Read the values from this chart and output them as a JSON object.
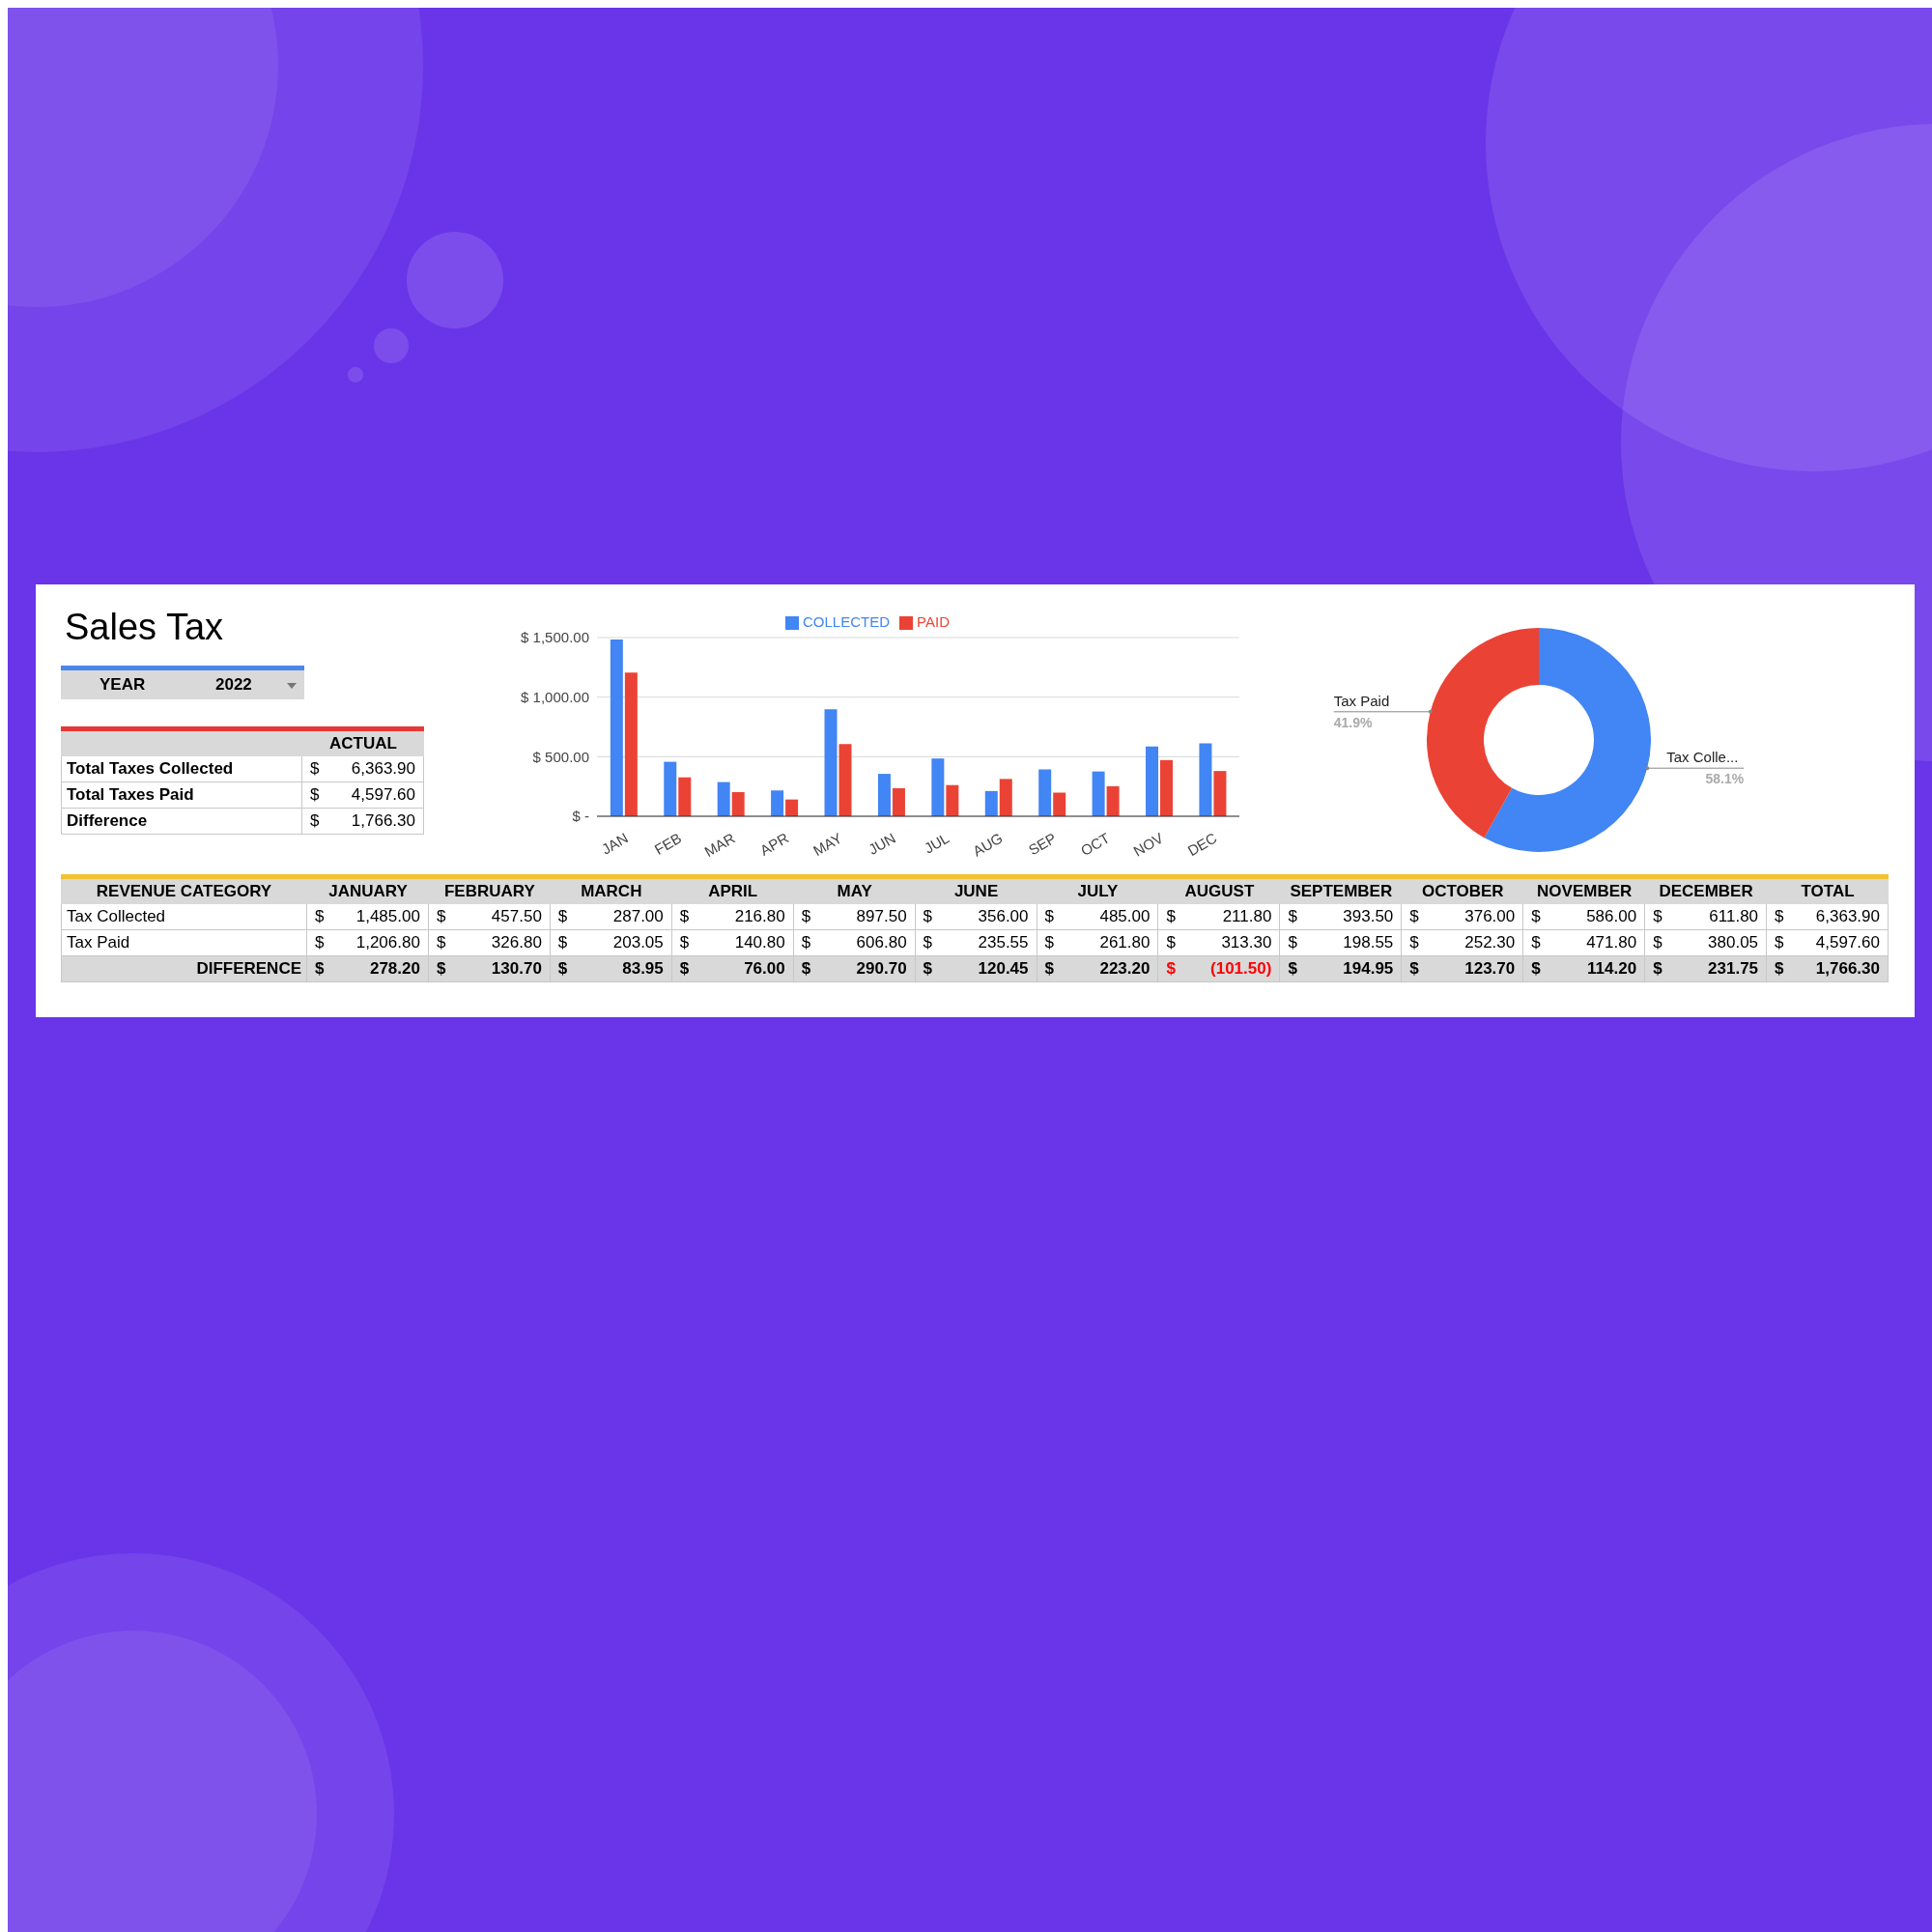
{
  "chart_data": [
    {
      "type": "other",
      "title": "Sales Tax",
      "annotations": [
        "YEAR",
        "2022",
        "$"
      ],
      "categories": [
        "ACTUAL"
      ],
      "series": [
        {
          "name": "Total Taxes Collected",
          "values": [
            6363.9
          ],
          "value_labels": [
            "6,363.90"
          ]
        },
        {
          "name": "Total Taxes Paid",
          "values": [
            4597.6
          ],
          "value_labels": [
            "4,597.60"
          ]
        },
        {
          "name": "Difference",
          "values": [
            1766.3
          ],
          "value_labels": [
            "1,766.30"
          ]
        }
      ]
    },
    {
      "type": "bar",
      "categories": [
        "JAN",
        "FEB",
        "MAR",
        "APR",
        "MAY",
        "JUN",
        "JUL",
        "AUG",
        "SEP",
        "OCT",
        "NOV",
        "DEC"
      ],
      "series": [
        {
          "name": "COLLECTED",
          "color": "#4285f4",
          "values": [
            1485,
            457.5,
            287,
            216.8,
            897.5,
            356,
            485,
            211.8,
            393.5,
            376,
            586,
            611.8
          ]
        },
        {
          "name": "PAID",
          "color": "#ea4335",
          "values": [
            1206.8,
            326.8,
            203.05,
            140.8,
            606.8,
            235.55,
            261.8,
            313.3,
            198.55,
            252.3,
            471.8,
            380.05
          ]
        }
      ],
      "ylim": [
        0,
        1500
      ],
      "yticks": [
        {
          "value": 0,
          "label": "$ -"
        },
        {
          "value": 500,
          "label": "$ 500.00"
        },
        {
          "value": 1000,
          "label": "$ 1,000.00"
        },
        {
          "value": 1500,
          "label": "$ 1,500.00"
        }
      ],
      "grid": "y",
      "legend": "top"
    },
    {
      "type": "donut",
      "categories": [
        "Tax Colle...",
        "Tax Paid"
      ],
      "values": [
        58.1,
        41.9
      ],
      "colors": [
        "#4285f4",
        "#ea4335"
      ],
      "value_labels": [
        "58.1%",
        "41.9%"
      ]
    },
    {
      "type": "other",
      "ylabel": "REVENUE CATEGORY",
      "annotations": [
        "$"
      ],
      "categories": [
        "JANUARY",
        "FEBRUARY",
        "MARCH",
        "APRIL",
        "MAY",
        "JUNE",
        "JULY",
        "AUGUST",
        "SEPTEMBER",
        "OCTOBER",
        "NOVEMBER",
        "DECEMBER",
        "TOTAL"
      ],
      "series": [
        {
          "name": "Tax Collected",
          "values": [
            1485,
            457.5,
            287,
            216.8,
            897.5,
            356,
            485,
            211.8,
            393.5,
            376,
            586,
            611.8,
            6363.9
          ],
          "value_labels": [
            "1,485.00",
            "457.50",
            "287.00",
            "216.80",
            "897.50",
            "356.00",
            "485.00",
            "211.80",
            "393.50",
            "376.00",
            "586.00",
            "611.80",
            "6,363.90"
          ]
        },
        {
          "name": "Tax Paid",
          "values": [
            1206.8,
            326.8,
            203.05,
            140.8,
            606.8,
            235.55,
            261.8,
            313.3,
            198.55,
            252.3,
            471.8,
            380.05,
            4597.6
          ],
          "value_labels": [
            "1,206.80",
            "326.80",
            "203.05",
            "140.80",
            "606.80",
            "235.55",
            "261.80",
            "313.30",
            "198.55",
            "252.30",
            "471.80",
            "380.05",
            "4,597.60"
          ]
        },
        {
          "name": "DIFFERENCE",
          "values": [
            278.2,
            130.7,
            83.95,
            76,
            290.7,
            120.45,
            223.2,
            -101.5,
            194.95,
            123.7,
            114.2,
            231.75,
            1766.3
          ],
          "value_labels": [
            "278.20",
            "130.70",
            "83.95",
            "76.00",
            "290.70",
            "120.45",
            "223.20",
            "(101.50)",
            "194.95",
            "123.70",
            "114.20",
            "231.75",
            "1,766.30"
          ],
          "colors": [
            null,
            null,
            null,
            null,
            null,
            null,
            null,
            "#ff0000",
            null,
            null,
            null,
            null,
            null
          ]
        }
      ]
    }
  ]
}
